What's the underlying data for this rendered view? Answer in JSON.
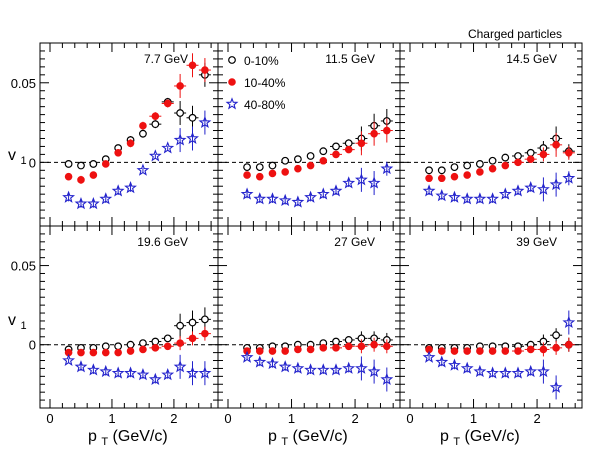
{
  "header_text": "Charged particles",
  "y_label_main": "v",
  "y_label_sub": "1",
  "x_label_main": "p",
  "x_label_sub": "T",
  "x_label_unit": " (GeV/c)",
  "legend": [
    {
      "label": "0-10%",
      "marker": "open-circle",
      "color": "#000000"
    },
    {
      "label": "10-40%",
      "marker": "filled-circle",
      "color": "#ee1111"
    },
    {
      "label": "40-80%",
      "marker": "open-star",
      "color": "#2222cc"
    }
  ],
  "chart_data": [
    {
      "type": "scatter",
      "title": "7.7 GeV",
      "xlim": [
        0,
        2.7
      ],
      "ylim": [
        -0.04,
        0.075
      ],
      "x_ticks": [
        "0",
        "1",
        "2"
      ],
      "y_ticks": [
        "0",
        "0.05"
      ],
      "series": [
        {
          "name": "0-10%",
          "x": [
            0.3,
            0.5,
            0.7,
            0.9,
            1.1,
            1.3,
            1.5,
            1.7,
            1.9,
            2.1,
            2.3,
            2.5
          ],
          "y": [
            -0.001,
            -0.002,
            -0.001,
            0.002,
            0.009,
            0.014,
            0.018,
            0.024,
            0.038,
            0.031,
            0.028,
            0.055
          ]
        },
        {
          "name": "10-40%",
          "x": [
            0.3,
            0.5,
            0.7,
            0.9,
            1.1,
            1.3,
            1.5,
            1.7,
            1.9,
            2.1,
            2.3,
            2.5
          ],
          "y": [
            -0.009,
            -0.011,
            -0.008,
            -0.001,
            0.006,
            0.012,
            0.023,
            0.029,
            0.037,
            0.048,
            0.061,
            0.058
          ]
        },
        {
          "name": "40-80%",
          "x": [
            0.3,
            0.5,
            0.7,
            0.9,
            1.1,
            1.3,
            1.5,
            1.7,
            1.9,
            2.1,
            2.3,
            2.5
          ],
          "y": [
            -0.022,
            -0.026,
            -0.026,
            -0.023,
            -0.018,
            -0.016,
            -0.005,
            0.004,
            0.009,
            0.014,
            0.015,
            0.025
          ]
        }
      ]
    },
    {
      "type": "scatter",
      "title": "11.5 GeV",
      "xlim": [
        0,
        2.7
      ],
      "ylim": [
        -0.04,
        0.075
      ],
      "x_ticks": [
        "0",
        "1",
        "2"
      ],
      "y_ticks": [],
      "series": [
        {
          "name": "0-10%",
          "x": [
            0.3,
            0.5,
            0.7,
            0.9,
            1.1,
            1.3,
            1.5,
            1.7,
            1.9,
            2.1,
            2.3,
            2.5
          ],
          "y": [
            -0.003,
            -0.003,
            -0.002,
            0.001,
            0.002,
            0.004,
            0.007,
            0.01,
            0.012,
            0.015,
            0.023,
            0.026
          ]
        },
        {
          "name": "10-40%",
          "x": [
            0.3,
            0.5,
            0.7,
            0.9,
            1.1,
            1.3,
            1.5,
            1.7,
            1.9,
            2.1,
            2.3,
            2.5
          ],
          "y": [
            -0.008,
            -0.009,
            -0.007,
            -0.006,
            -0.004,
            -0.002,
            0.001,
            0.005,
            0.008,
            0.012,
            0.018,
            0.02
          ]
        },
        {
          "name": "40-80%",
          "x": [
            0.3,
            0.5,
            0.7,
            0.9,
            1.1,
            1.3,
            1.5,
            1.7,
            1.9,
            2.1,
            2.3,
            2.5
          ],
          "y": [
            -0.02,
            -0.023,
            -0.023,
            -0.024,
            -0.025,
            -0.022,
            -0.02,
            -0.018,
            -0.013,
            -0.011,
            -0.013,
            -0.004
          ]
        }
      ]
    },
    {
      "type": "scatter",
      "title": "14.5 GeV",
      "xlim": [
        0,
        2.7
      ],
      "ylim": [
        -0.04,
        0.075
      ],
      "x_ticks": [],
      "y_ticks": [],
      "series": [
        {
          "name": "0-10%",
          "x": [
            0.3,
            0.5,
            0.7,
            0.9,
            1.1,
            1.3,
            1.5,
            1.7,
            1.9,
            2.1,
            2.3,
            2.5
          ],
          "y": [
            -0.005,
            -0.005,
            -0.003,
            -0.002,
            -0.001,
            0.001,
            0.003,
            0.004,
            0.006,
            0.009,
            0.015,
            0.007
          ]
        },
        {
          "name": "10-40%",
          "x": [
            0.3,
            0.5,
            0.7,
            0.9,
            1.1,
            1.3,
            1.5,
            1.7,
            1.9,
            2.1,
            2.3,
            2.5
          ],
          "y": [
            -0.01,
            -0.01,
            -0.009,
            -0.008,
            -0.006,
            -0.004,
            -0.002,
            0.0,
            0.002,
            0.005,
            0.011,
            0.006
          ]
        },
        {
          "name": "40-80%",
          "x": [
            0.3,
            0.5,
            0.7,
            0.9,
            1.1,
            1.3,
            1.5,
            1.7,
            1.9,
            2.1,
            2.3,
            2.5
          ],
          "y": [
            -0.018,
            -0.021,
            -0.022,
            -0.023,
            -0.023,
            -0.023,
            -0.02,
            -0.018,
            -0.016,
            -0.017,
            -0.014,
            -0.01
          ]
        }
      ]
    },
    {
      "type": "scatter",
      "title": "19.6 GeV",
      "xlim": [
        0,
        2.7
      ],
      "ylim": [
        -0.04,
        0.075
      ],
      "x_ticks": [
        "0",
        "1",
        "2"
      ],
      "y_ticks": [
        "0",
        "0.05"
      ],
      "series": [
        {
          "name": "0-10%",
          "x": [
            0.3,
            0.5,
            0.7,
            0.9,
            1.1,
            1.3,
            1.5,
            1.7,
            1.9,
            2.1,
            2.3,
            2.5
          ],
          "y": [
            -0.003,
            -0.002,
            -0.002,
            -0.001,
            -0.001,
            0.0,
            0.001,
            0.002,
            0.004,
            0.012,
            0.014,
            0.016
          ]
        },
        {
          "name": "10-40%",
          "x": [
            0.3,
            0.5,
            0.7,
            0.9,
            1.1,
            1.3,
            1.5,
            1.7,
            1.9,
            2.1,
            2.3,
            2.5
          ],
          "y": [
            -0.005,
            -0.005,
            -0.005,
            -0.005,
            -0.005,
            -0.004,
            -0.003,
            -0.002,
            -0.001,
            0.001,
            0.004,
            0.007
          ]
        },
        {
          "name": "40-80%",
          "x": [
            0.3,
            0.5,
            0.7,
            0.9,
            1.1,
            1.3,
            1.5,
            1.7,
            1.9,
            2.1,
            2.3,
            2.5
          ],
          "y": [
            -0.01,
            -0.014,
            -0.016,
            -0.017,
            -0.018,
            -0.018,
            -0.019,
            -0.022,
            -0.019,
            -0.014,
            -0.018,
            -0.018
          ]
        }
      ]
    },
    {
      "type": "scatter",
      "title": "27 GeV",
      "xlim": [
        0,
        2.7
      ],
      "ylim": [
        -0.04,
        0.075
      ],
      "x_ticks": [
        "0",
        "1",
        "2"
      ],
      "y_ticks": [],
      "series": [
        {
          "name": "0-10%",
          "x": [
            0.3,
            0.5,
            0.7,
            0.9,
            1.1,
            1.3,
            1.5,
            1.7,
            1.9,
            2.1,
            2.3,
            2.5
          ],
          "y": [
            -0.002,
            -0.002,
            -0.001,
            -0.001,
            0.0,
            0.0,
            0.001,
            0.002,
            0.003,
            0.004,
            0.004,
            0.003
          ]
        },
        {
          "name": "10-40%",
          "x": [
            0.3,
            0.5,
            0.7,
            0.9,
            1.1,
            1.3,
            1.5,
            1.7,
            1.9,
            2.1,
            2.3,
            2.5
          ],
          "y": [
            -0.004,
            -0.004,
            -0.004,
            -0.004,
            -0.003,
            -0.003,
            -0.002,
            -0.002,
            -0.001,
            -0.001,
            0.0,
            -0.001
          ]
        },
        {
          "name": "40-80%",
          "x": [
            0.3,
            0.5,
            0.7,
            0.9,
            1.1,
            1.3,
            1.5,
            1.7,
            1.9,
            2.1,
            2.3,
            2.5
          ],
          "y": [
            -0.008,
            -0.011,
            -0.012,
            -0.014,
            -0.015,
            -0.016,
            -0.016,
            -0.016,
            -0.015,
            -0.015,
            -0.017,
            -0.022
          ]
        }
      ]
    },
    {
      "type": "scatter",
      "title": "39 GeV",
      "xlim": [
        0,
        2.7
      ],
      "ylim": [
        -0.04,
        0.075
      ],
      "x_ticks": [
        "0",
        "1",
        "2"
      ],
      "y_ticks": [],
      "series": [
        {
          "name": "0-10%",
          "x": [
            0.3,
            0.5,
            0.7,
            0.9,
            1.1,
            1.3,
            1.5,
            1.7,
            1.9,
            2.1,
            2.3,
            2.5
          ],
          "y": [
            -0.002,
            -0.002,
            -0.002,
            -0.002,
            -0.001,
            -0.001,
            -0.001,
            -0.001,
            0.0,
            0.002,
            0.006,
            0.0
          ]
        },
        {
          "name": "10-40%",
          "x": [
            0.3,
            0.5,
            0.7,
            0.9,
            1.1,
            1.3,
            1.5,
            1.7,
            1.9,
            2.1,
            2.3,
            2.5
          ],
          "y": [
            -0.003,
            -0.004,
            -0.004,
            -0.004,
            -0.004,
            -0.004,
            -0.004,
            -0.004,
            -0.003,
            -0.003,
            -0.002,
            0.0
          ]
        },
        {
          "name": "40-80%",
          "x": [
            0.3,
            0.5,
            0.7,
            0.9,
            1.1,
            1.3,
            1.5,
            1.7,
            1.9,
            2.1,
            2.3,
            2.5
          ],
          "y": [
            -0.008,
            -0.011,
            -0.013,
            -0.015,
            -0.017,
            -0.018,
            -0.018,
            -0.018,
            -0.017,
            -0.017,
            -0.027,
            0.014
          ]
        }
      ]
    }
  ]
}
